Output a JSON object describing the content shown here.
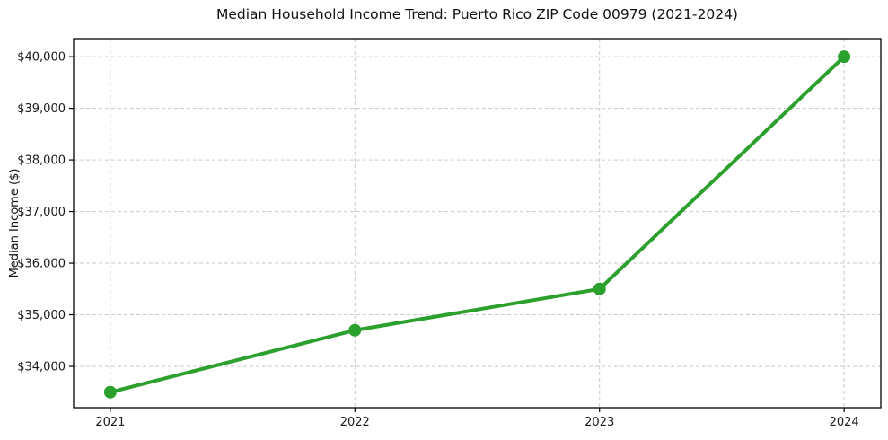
{
  "chart_data": {
    "type": "line",
    "title": "Median Household Income Trend: Puerto Rico ZIP Code 00979 (2021-2024)",
    "xlabel": "",
    "ylabel": "Median Income ($)",
    "categories": [
      "2021",
      "2022",
      "2023",
      "2024"
    ],
    "series": [
      {
        "name": "Median Household Income",
        "values": [
          33500,
          34700,
          35500,
          40000
        ],
        "color": "#2ca02c"
      }
    ],
    "yticks": [
      34000,
      35000,
      36000,
      37000,
      38000,
      39000,
      40000
    ],
    "ytick_labels": [
      "$34,000",
      "$35,000",
      "$36,000",
      "$37,000",
      "$38,000",
      "$39,000",
      "$40,000"
    ],
    "ylim": [
      33200,
      40350
    ],
    "x_margin_units": 0.15,
    "grid": true,
    "grid_color": "#c9c9c9",
    "grid_style": "dashed",
    "legend_position": "none",
    "marker": "circle",
    "marker_radius": 7,
    "line_width": 4,
    "axis_color": "#000000",
    "tick_text_color": "#1a1a1a",
    "background_color": "#ffffff"
  }
}
